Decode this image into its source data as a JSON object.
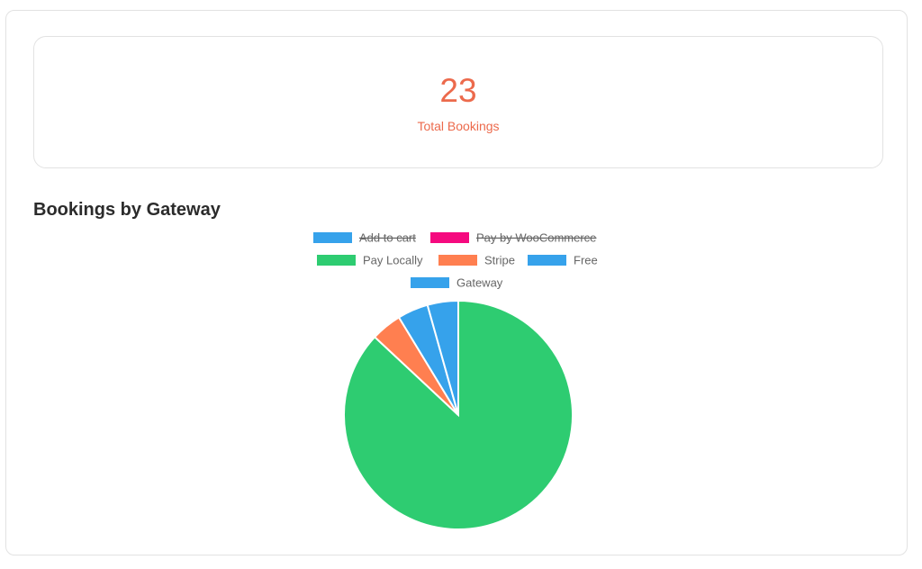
{
  "stat": {
    "value": 23,
    "label": "Total Bookings"
  },
  "chart_data": {
    "type": "pie",
    "title": "Bookings by Gateway",
    "categories": [
      "Add to cart",
      "Pay by WooCommerce",
      "Pay Locally",
      "Stripe",
      "Free",
      "Gateway"
    ],
    "values": [
      null,
      null,
      20,
      1,
      1,
      1
    ],
    "colors": [
      "#36a2eb",
      "#f50a7f",
      "#2ecc71",
      "#ff7f50",
      "#36a2eb",
      "#36a2eb"
    ],
    "hidden": [
      true,
      true,
      false,
      false,
      false,
      false
    ]
  }
}
